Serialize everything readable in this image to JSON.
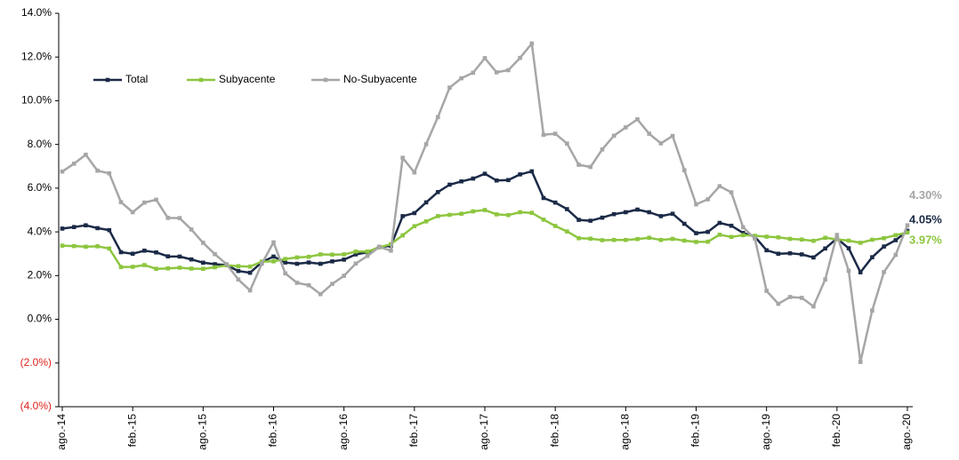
{
  "chart_data": {
    "type": "line",
    "categories": [
      "ago.-14",
      null,
      null,
      null,
      null,
      null,
      "feb.-15",
      null,
      null,
      null,
      null,
      null,
      "ago.-15",
      null,
      null,
      null,
      null,
      null,
      "feb.-16",
      null,
      null,
      null,
      null,
      null,
      "ago.-16",
      null,
      null,
      null,
      null,
      null,
      "feb.-17",
      null,
      null,
      null,
      null,
      null,
      "ago.-17",
      null,
      null,
      null,
      null,
      null,
      "feb.-18",
      null,
      null,
      null,
      null,
      null,
      "ago.-18",
      null,
      null,
      null,
      null,
      null,
      "feb.-19",
      null,
      null,
      null,
      null,
      null,
      "ago.-19",
      null,
      null,
      null,
      null,
      null,
      "feb.-20",
      null,
      null,
      null,
      null,
      null,
      "ago.-20"
    ],
    "series": [
      {
        "name": "Total",
        "color": "#1b2a47",
        "values": [
          4.15,
          4.22,
          4.3,
          4.17,
          4.08,
          3.07,
          3.0,
          3.14,
          3.06,
          2.88,
          2.87,
          2.74,
          2.59,
          2.52,
          2.48,
          2.21,
          2.13,
          2.61,
          2.87,
          2.6,
          2.54,
          2.6,
          2.54,
          2.65,
          2.73,
          2.97,
          3.06,
          3.31,
          3.36,
          4.72,
          4.86,
          5.35,
          5.82,
          6.16,
          6.31,
          6.44,
          6.66,
          6.35,
          6.37,
          6.63,
          6.77,
          5.55,
          5.34,
          5.04,
          4.55,
          4.51,
          4.65,
          4.81,
          4.9,
          5.02,
          4.9,
          4.72,
          4.83,
          4.37,
          3.94,
          4.0,
          4.41,
          4.28,
          3.95,
          3.78,
          3.16,
          3.0,
          3.02,
          2.97,
          2.83,
          3.24,
          3.7,
          3.25,
          2.15,
          2.84,
          3.33,
          3.62,
          4.05
        ],
        "value_labels": [
          null,
          null,
          null,
          null,
          null,
          null,
          null,
          null,
          null,
          null,
          null,
          null,
          null,
          null,
          null,
          null,
          null,
          null,
          null,
          null,
          null,
          null,
          null,
          null,
          null,
          null,
          null,
          null,
          null,
          null,
          null,
          null,
          null,
          null,
          null,
          null,
          null,
          null,
          null,
          null,
          null,
          null,
          null,
          null,
          null,
          null,
          null,
          null,
          null,
          null,
          null,
          null,
          null,
          null,
          null,
          null,
          null,
          null,
          null,
          null,
          null,
          null,
          null,
          null,
          null,
          null,
          null,
          null,
          null,
          null,
          null,
          null,
          "4.05%"
        ]
      },
      {
        "name": "Subyacente",
        "color": "#8dc63f",
        "values": [
          3.37,
          3.35,
          3.32,
          3.34,
          3.24,
          2.39,
          2.4,
          2.48,
          2.31,
          2.33,
          2.36,
          2.32,
          2.31,
          2.38,
          2.47,
          2.43,
          2.41,
          2.64,
          2.65,
          2.76,
          2.83,
          2.86,
          2.97,
          2.96,
          2.97,
          3.1,
          3.1,
          3.29,
          3.44,
          3.84,
          4.26,
          4.48,
          4.72,
          4.78,
          4.83,
          4.94,
          5.0,
          4.8,
          4.77,
          4.9,
          4.87,
          4.56,
          4.27,
          4.02,
          3.71,
          3.69,
          3.62,
          3.63,
          3.63,
          3.67,
          3.73,
          3.63,
          3.68,
          3.6,
          3.54,
          3.55,
          3.87,
          3.77,
          3.85,
          3.82,
          3.78,
          3.75,
          3.68,
          3.65,
          3.59,
          3.73,
          3.66,
          3.6,
          3.5,
          3.64,
          3.71,
          3.85,
          3.97
        ],
        "value_labels": [
          null,
          null,
          null,
          null,
          null,
          null,
          null,
          null,
          null,
          null,
          null,
          null,
          null,
          null,
          null,
          null,
          null,
          null,
          null,
          null,
          null,
          null,
          null,
          null,
          null,
          null,
          null,
          null,
          null,
          null,
          null,
          null,
          null,
          null,
          null,
          null,
          null,
          null,
          null,
          null,
          null,
          null,
          null,
          null,
          null,
          null,
          null,
          null,
          null,
          null,
          null,
          null,
          null,
          null,
          null,
          null,
          null,
          null,
          null,
          null,
          null,
          null,
          null,
          null,
          null,
          null,
          null,
          null,
          null,
          null,
          null,
          null,
          "3.97%"
        ]
      },
      {
        "name": "No-Subyacente",
        "color": "#a6a6a6",
        "values": [
          6.76,
          7.12,
          7.53,
          6.8,
          6.68,
          5.36,
          4.9,
          5.34,
          5.47,
          4.64,
          4.63,
          4.11,
          3.5,
          2.98,
          2.52,
          1.82,
          1.32,
          2.54,
          3.52,
          2.1,
          1.67,
          1.56,
          1.15,
          1.62,
          1.99,
          2.55,
          2.9,
          3.31,
          3.14,
          7.39,
          6.72,
          8.01,
          9.25,
          10.6,
          11.03,
          11.28,
          11.95,
          11.3,
          11.4,
          11.96,
          12.62,
          8.44,
          8.49,
          8.04,
          7.07,
          6.97,
          7.77,
          8.4,
          8.78,
          9.15,
          8.49,
          8.05,
          8.39,
          6.82,
          5.26,
          5.49,
          6.09,
          5.81,
          4.21,
          3.7,
          1.3,
          0.71,
          1.02,
          0.98,
          0.59,
          1.82,
          3.86,
          2.22,
          -1.95,
          0.4,
          2.16,
          2.95,
          4.3
        ],
        "value_labels": [
          null,
          null,
          null,
          null,
          null,
          null,
          null,
          null,
          null,
          null,
          null,
          null,
          null,
          null,
          null,
          null,
          null,
          null,
          null,
          null,
          null,
          null,
          null,
          null,
          null,
          null,
          null,
          null,
          null,
          null,
          null,
          null,
          null,
          null,
          null,
          null,
          null,
          null,
          null,
          null,
          null,
          null,
          null,
          null,
          null,
          null,
          null,
          null,
          null,
          null,
          null,
          null,
          null,
          null,
          null,
          null,
          null,
          null,
          null,
          null,
          null,
          null,
          null,
          null,
          null,
          null,
          null,
          null,
          null,
          null,
          null,
          null,
          "4.30%"
        ]
      }
    ],
    "ylim": [
      -4,
      14
    ],
    "yticks": [
      {
        "value": -4,
        "label": "(4.0%)"
      },
      {
        "value": -2,
        "label": "(2.0%)"
      },
      {
        "value": 0,
        "label": "0.0%"
      },
      {
        "value": 2,
        "label": "2.0%"
      },
      {
        "value": 4,
        "label": "4.0%"
      },
      {
        "value": 6,
        "label": "6.0%"
      },
      {
        "value": 8,
        "label": "8.0%"
      },
      {
        "value": 10,
        "label": "10.0%"
      },
      {
        "value": 12,
        "label": "12.0%"
      },
      {
        "value": 14,
        "label": "14.0%"
      }
    ],
    "negative_tick_color": "#e0201b",
    "grid": false,
    "legend": "upper left"
  }
}
